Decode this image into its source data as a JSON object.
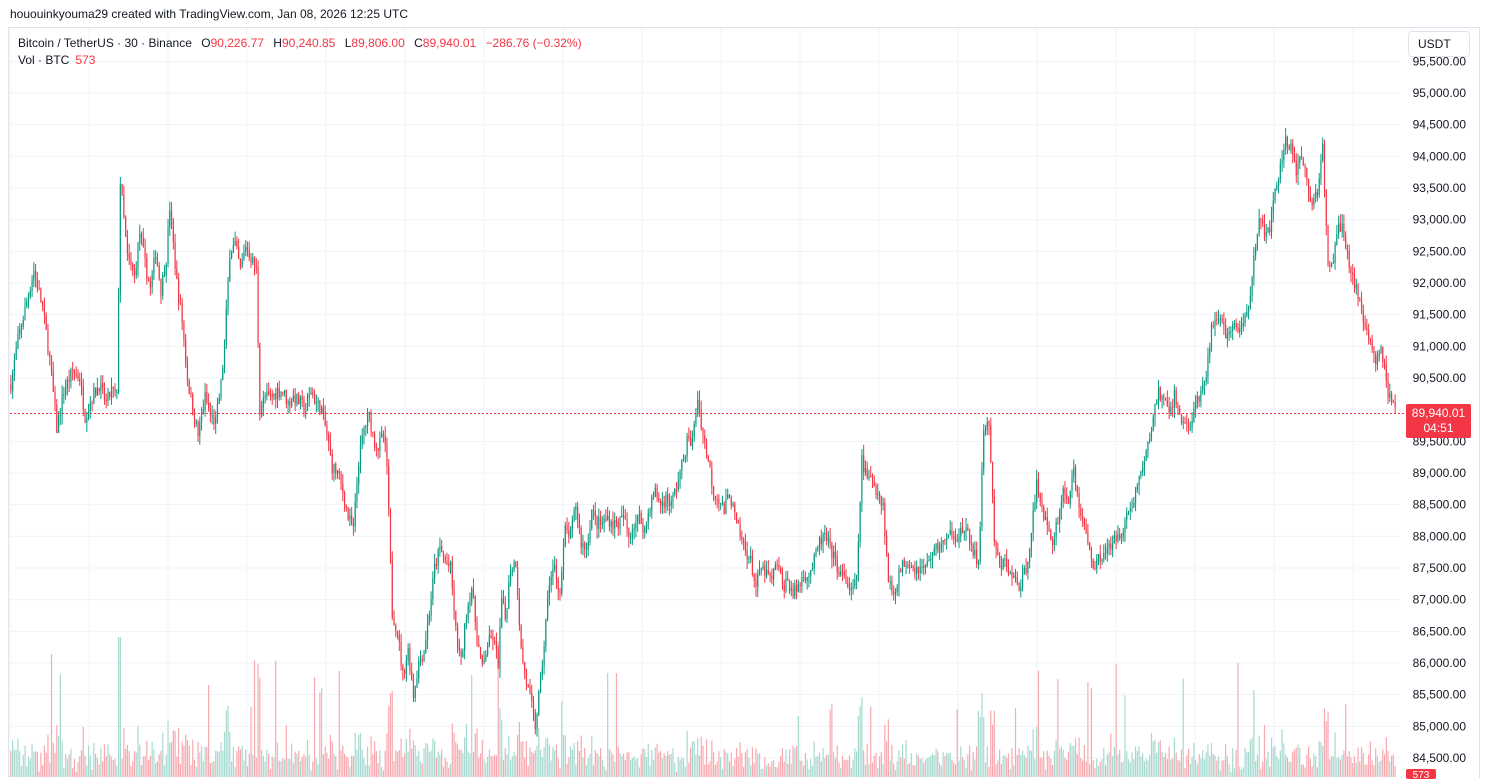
{
  "attribution": "hououinkyouma29 created with TradingView.com, Jan 08, 2026 12:25 UTC",
  "legend": {
    "symbol": "Bitcoin / TetherUS · 30 · Binance",
    "o_label": "O",
    "o_value": "90,226.77",
    "h_label": "H",
    "h_value": "90,240.85",
    "l_label": "L",
    "l_value": "89,806.00",
    "c_label": "C",
    "c_value": "89,940.01",
    "change": "−286.76 (−0.32%)"
  },
  "volume_legend": {
    "label": "Vol · BTC",
    "value": "573"
  },
  "currency_button": "USDT",
  "last_price": {
    "price": "89,940.01",
    "countdown": "04:51",
    "volume_tag": "573"
  },
  "colors": {
    "up": "#089981",
    "down": "#f23645",
    "up_vol": "#a7d9cf",
    "down_vol": "#f7a9af",
    "grid": "#f0f3fa",
    "price_line": "#f23645"
  },
  "chart_data": {
    "type": "candlestick",
    "symbol": "BTCUSDT",
    "interval": "30",
    "ylim": [
      84300,
      95600
    ],
    "yticks": [
      84500,
      85000,
      85500,
      86000,
      86500,
      87000,
      87500,
      88000,
      88500,
      89000,
      89500,
      90000,
      90500,
      91000,
      91500,
      92000,
      92500,
      93000,
      93500,
      94000,
      94500,
      95000,
      95500
    ],
    "ytick_labels": [
      "84,500.00",
      "85,000.00",
      "85,500.00",
      "86,000.00",
      "86,500.00",
      "87,000.00",
      "87,500.00",
      "88,000.00",
      "88,500.00",
      "89,000.00",
      "89,500.00",
      "90,000.00",
      "90,500.00",
      "91,000.00",
      "91,500.00",
      "92,000.00",
      "92,500.00",
      "93,000.00",
      "93,500.00",
      "94,000.00",
      "94,500.00",
      "95,000.00",
      "95,500.00"
    ],
    "last_close": 89940.01,
    "close_path": [
      [
        0,
        90400
      ],
      [
        4,
        91100
      ],
      [
        9,
        91700
      ],
      [
        13,
        92200
      ],
      [
        18,
        91600
      ],
      [
        22,
        90800
      ],
      [
        26,
        89700
      ],
      [
        30,
        90300
      ],
      [
        35,
        90600
      ],
      [
        39,
        90500
      ],
      [
        42,
        89900
      ],
      [
        46,
        90200
      ],
      [
        50,
        90400
      ],
      [
        54,
        90100
      ],
      [
        57,
        90300
      ],
      [
        60,
        90200
      ],
      [
        62,
        93600
      ],
      [
        66,
        92400
      ],
      [
        70,
        92100
      ],
      [
        73,
        92800
      ],
      [
        76,
        92300
      ],
      [
        79,
        91900
      ],
      [
        82,
        92500
      ],
      [
        85,
        91900
      ],
      [
        88,
        92400
      ],
      [
        90,
        93200
      ],
      [
        94,
        92000
      ],
      [
        97,
        91400
      ],
      [
        100,
        90500
      ],
      [
        103,
        90000
      ],
      [
        106,
        89600
      ],
      [
        110,
        90200
      ],
      [
        113,
        89900
      ],
      [
        116,
        89800
      ],
      [
        119,
        90400
      ],
      [
        121,
        91000
      ],
      [
        124,
        92500
      ],
      [
        127,
        92600
      ],
      [
        130,
        92200
      ],
      [
        133,
        92600
      ],
      [
        136,
        92400
      ],
      [
        139,
        92200
      ],
      [
        141,
        90000
      ],
      [
        144,
        90200
      ],
      [
        148,
        90200
      ],
      [
        151,
        90300
      ],
      [
        154,
        90300
      ],
      [
        157,
        90100
      ],
      [
        160,
        90200
      ],
      [
        164,
        90100
      ],
      [
        167,
        90000
      ],
      [
        170,
        90300
      ],
      [
        173,
        90100
      ],
      [
        176,
        90000
      ],
      [
        179,
        89600
      ],
      [
        182,
        89100
      ],
      [
        185,
        89000
      ],
      [
        188,
        88700
      ],
      [
        191,
        88300
      ],
      [
        194,
        88100
      ],
      [
        197,
        89200
      ],
      [
        200,
        89700
      ],
      [
        203,
        89900
      ],
      [
        205,
        89600
      ],
      [
        208,
        89400
      ],
      [
        211,
        89600
      ],
      [
        213,
        89100
      ],
      [
        216,
        86800
      ],
      [
        219,
        86500
      ],
      [
        222,
        85800
      ],
      [
        225,
        86200
      ],
      [
        228,
        85500
      ],
      [
        231,
        86000
      ],
      [
        234,
        86200
      ],
      [
        237,
        86800
      ],
      [
        240,
        87500
      ],
      [
        243,
        87800
      ],
      [
        246,
        87600
      ],
      [
        249,
        87500
      ],
      [
        252,
        86500
      ],
      [
        255,
        86000
      ],
      [
        258,
        86800
      ],
      [
        261,
        87200
      ],
      [
        264,
        86400
      ],
      [
        267,
        85900
      ],
      [
        270,
        86300
      ],
      [
        273,
        86400
      ],
      [
        276,
        86000
      ],
      [
        278,
        87000
      ],
      [
        280,
        86700
      ],
      [
        283,
        87500
      ],
      [
        286,
        87600
      ],
      [
        289,
        86200
      ],
      [
        292,
        85700
      ],
      [
        295,
        85300
      ],
      [
        297,
        85000
      ],
      [
        300,
        85700
      ],
      [
        302,
        86300
      ],
      [
        305,
        87300
      ],
      [
        308,
        87500
      ],
      [
        311,
        87100
      ],
      [
        314,
        88100
      ],
      [
        317,
        88000
      ],
      [
        320,
        88500
      ],
      [
        323,
        87900
      ],
      [
        326,
        87800
      ],
      [
        329,
        88400
      ],
      [
        332,
        88200
      ],
      [
        335,
        88200
      ],
      [
        338,
        88300
      ],
      [
        341,
        88200
      ],
      [
        344,
        88200
      ],
      [
        347,
        88300
      ],
      [
        350,
        88000
      ],
      [
        353,
        88200
      ],
      [
        356,
        88300
      ],
      [
        359,
        88100
      ],
      [
        362,
        88500
      ],
      [
        365,
        88700
      ],
      [
        368,
        88500
      ],
      [
        371,
        88600
      ],
      [
        374,
        88500
      ],
      [
        377,
        88800
      ],
      [
        380,
        89100
      ],
      [
        383,
        89500
      ],
      [
        386,
        89500
      ],
      [
        389,
        90200
      ],
      [
        392,
        89600
      ],
      [
        395,
        89200
      ],
      [
        398,
        88700
      ],
      [
        401,
        88600
      ],
      [
        404,
        88400
      ],
      [
        407,
        88700
      ],
      [
        410,
        88300
      ],
      [
        413,
        88000
      ],
      [
        416,
        87800
      ],
      [
        419,
        87600
      ],
      [
        422,
        87200
      ],
      [
        425,
        87500
      ],
      [
        428,
        87400
      ],
      [
        431,
        87300
      ],
      [
        434,
        87600
      ],
      [
        437,
        87200
      ],
      [
        440,
        87300
      ],
      [
        443,
        87100
      ],
      [
        446,
        87200
      ],
      [
        449,
        87400
      ],
      [
        452,
        87400
      ],
      [
        455,
        87600
      ],
      [
        458,
        87900
      ],
      [
        461,
        88000
      ],
      [
        464,
        87800
      ],
      [
        467,
        87600
      ],
      [
        470,
        87400
      ],
      [
        473,
        87300
      ],
      [
        476,
        87100
      ],
      [
        479,
        87300
      ],
      [
        482,
        89200
      ],
      [
        485,
        88900
      ],
      [
        488,
        88900
      ],
      [
        491,
        88700
      ],
      [
        494,
        88500
      ],
      [
        497,
        87300
      ],
      [
        500,
        87100
      ],
      [
        503,
        87400
      ],
      [
        506,
        87600
      ],
      [
        509,
        87600
      ],
      [
        512,
        87500
      ],
      [
        515,
        87500
      ],
      [
        518,
        87500
      ],
      [
        521,
        87700
      ],
      [
        524,
        87800
      ],
      [
        527,
        87900
      ],
      [
        530,
        87900
      ],
      [
        533,
        88100
      ],
      [
        536,
        88000
      ],
      [
        539,
        88100
      ],
      [
        542,
        88000
      ],
      [
        545,
        87800
      ],
      [
        548,
        87500
      ],
      [
        551,
        89700
      ],
      [
        554,
        89800
      ],
      [
        557,
        87900
      ],
      [
        560,
        87500
      ],
      [
        563,
        87600
      ],
      [
        566,
        87400
      ],
      [
        569,
        87300
      ],
      [
        572,
        87200
      ],
      [
        575,
        87500
      ],
      [
        578,
        88100
      ],
      [
        581,
        88800
      ],
      [
        584,
        88500
      ],
      [
        587,
        88100
      ],
      [
        590,
        87900
      ],
      [
        593,
        88300
      ],
      [
        596,
        88700
      ],
      [
        599,
        88600
      ],
      [
        602,
        89000
      ],
      [
        605,
        88500
      ],
      [
        608,
        88100
      ],
      [
        611,
        87800
      ],
      [
        614,
        87500
      ],
      [
        617,
        87700
      ],
      [
        620,
        87800
      ],
      [
        623,
        87800
      ],
      [
        626,
        88000
      ],
      [
        629,
        88100
      ],
      [
        632,
        88300
      ],
      [
        635,
        88500
      ],
      [
        638,
        88800
      ],
      [
        641,
        89100
      ],
      [
        644,
        89400
      ],
      [
        647,
        89900
      ],
      [
        650,
        90300
      ],
      [
        653,
        90100
      ],
      [
        656,
        90000
      ],
      [
        659,
        90200
      ],
      [
        662,
        89900
      ],
      [
        665,
        89800
      ],
      [
        668,
        89700
      ],
      [
        671,
        90100
      ],
      [
        674,
        90200
      ],
      [
        677,
        90500
      ],
      [
        680,
        91300
      ],
      [
        683,
        91500
      ],
      [
        686,
        91300
      ],
      [
        689,
        91200
      ],
      [
        692,
        91300
      ],
      [
        695,
        91200
      ],
      [
        698,
        91400
      ],
      [
        701,
        91600
      ],
      [
        704,
        92400
      ],
      [
        707,
        93100
      ],
      [
        710,
        92700
      ],
      [
        713,
        92900
      ],
      [
        716,
        93400
      ],
      [
        719,
        93800
      ],
      [
        722,
        94300
      ],
      [
        725,
        94100
      ],
      [
        728,
        93700
      ],
      [
        731,
        94000
      ],
      [
        734,
        93600
      ],
      [
        737,
        93200
      ],
      [
        740,
        93500
      ],
      [
        743,
        94100
      ],
      [
        746,
        92200
      ],
      [
        749,
        92400
      ],
      [
        752,
        92900
      ],
      [
        755,
        92800
      ],
      [
        758,
        92300
      ],
      [
        761,
        92000
      ],
      [
        764,
        91700
      ],
      [
        767,
        91200
      ],
      [
        770,
        91100
      ],
      [
        773,
        90800
      ],
      [
        776,
        91000
      ],
      [
        779,
        90400
      ],
      [
        782,
        90100
      ],
      [
        784,
        89940
      ]
    ]
  }
}
